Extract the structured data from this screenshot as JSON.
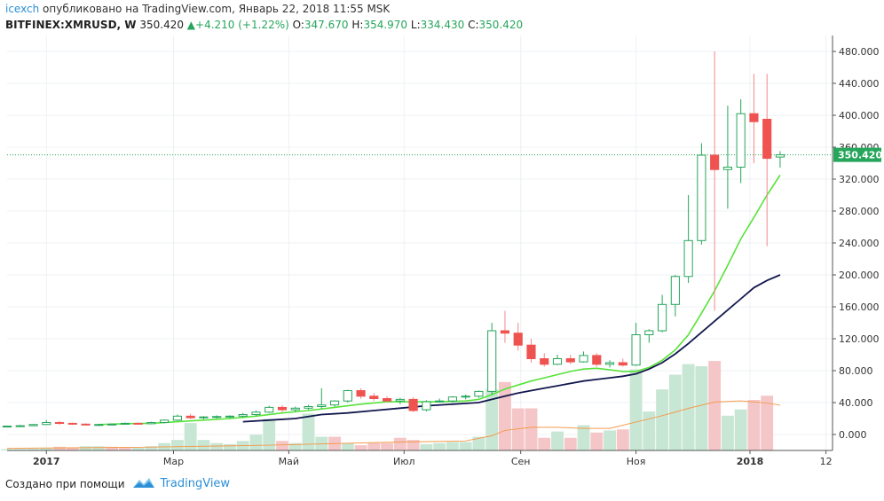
{
  "header": {
    "user": "icexch",
    "published": "опубликовано на TradingView.com, Январь 22, 2018 11:55 MSK",
    "symbol": "BITFINEX:XMRUSD, W",
    "last": "350.420",
    "arrow": "▲",
    "change": "+4.210 (+1.22%)",
    "o_label": "O:",
    "o": "347.670",
    "h_label": "H:",
    "h": "354.970",
    "l_label": "L:",
    "l": "334.430",
    "c_label": "C:",
    "c": "350.420"
  },
  "footer": {
    "created": "Создано при помощи",
    "brand": "TradingView"
  },
  "colors": {
    "up": "#26a65b",
    "down": "#ef5350",
    "volume_up": "#c8e6d4",
    "volume_down": "#f5c6c8",
    "ma_fast": "#57e338",
    "ma_slow": "#12174d",
    "vol_ma": "#f39a4a",
    "price_line": "#26a65b",
    "grid": "#eef1f4"
  },
  "chart_data": {
    "type": "candlestick",
    "y_ticks": [
      "0.000",
      "40.000",
      "80.000",
      "120.000",
      "160.000",
      "200.000",
      "240.000",
      "280.000",
      "320.000",
      "360.000",
      "400.000",
      "440.000",
      "480.000"
    ],
    "y_values": [
      0,
      40,
      80,
      120,
      160,
      200,
      240,
      280,
      320,
      360,
      400,
      440,
      480
    ],
    "ylim": [
      -20,
      500
    ],
    "x_ticks": [
      "2017",
      "Мар",
      "Май",
      "Июл",
      "Сен",
      "Ноя",
      "2018",
      "12"
    ],
    "x_tick_weeks": [
      3,
      12.7,
      21.5,
      30.3,
      39.2,
      48,
      56.7,
      62.5
    ],
    "xlim": [
      0,
      63
    ],
    "last_price_label": "350.420",
    "last_price": 350.42,
    "candles": [
      [
        0,
        10,
        11,
        9,
        10.5
      ],
      [
        1,
        10.5,
        12,
        10,
        11
      ],
      [
        2,
        11,
        13,
        10.5,
        12.5
      ],
      [
        3,
        12.5,
        18,
        12,
        15
      ],
      [
        4,
        15,
        17,
        12,
        14
      ],
      [
        5,
        14,
        15,
        12,
        13
      ],
      [
        6,
        13,
        14,
        11.5,
        12.5
      ],
      [
        7,
        12.5,
        13.5,
        11.5,
        12.5
      ],
      [
        8,
        12.5,
        14,
        12,
        13
      ],
      [
        9,
        13,
        15,
        12.5,
        14
      ],
      [
        10,
        14,
        15,
        12.5,
        13.5
      ],
      [
        11,
        13.5,
        16,
        13,
        15
      ],
      [
        12,
        15,
        19,
        14,
        18
      ],
      [
        13,
        18,
        25,
        17,
        23
      ],
      [
        14,
        23,
        26,
        19,
        21
      ],
      [
        15,
        21,
        23,
        19,
        22
      ],
      [
        16,
        22,
        24,
        20,
        22.5
      ],
      [
        17,
        22.5,
        24,
        20.5,
        23
      ],
      [
        18,
        23,
        27,
        21,
        25
      ],
      [
        19,
        25,
        30,
        23,
        28
      ],
      [
        20,
        28,
        36,
        27,
        34
      ],
      [
        21,
        34,
        37,
        28,
        31
      ],
      [
        22,
        31,
        35,
        28,
        33
      ],
      [
        23,
        33,
        37,
        31,
        35
      ],
      [
        24,
        35,
        58,
        32,
        37
      ],
      [
        25,
        37,
        43,
        35,
        42
      ],
      [
        26,
        42,
        56,
        40,
        55
      ],
      [
        27,
        55,
        58,
        45,
        48
      ],
      [
        28,
        48,
        52,
        42,
        45
      ],
      [
        29,
        45,
        48,
        40,
        42
      ],
      [
        30,
        42,
        46,
        38,
        44
      ],
      [
        31,
        44,
        47,
        28,
        30
      ],
      [
        32,
        31,
        43,
        29,
        41
      ],
      [
        33,
        41,
        45,
        40,
        42
      ],
      [
        34,
        42,
        48,
        40,
        47
      ],
      [
        35,
        47,
        50,
        44,
        48
      ],
      [
        36,
        48,
        55,
        46,
        54
      ],
      [
        37,
        54,
        140,
        50,
        130
      ],
      [
        38,
        130,
        155,
        115,
        127
      ],
      [
        39,
        127,
        140,
        105,
        112
      ],
      [
        40,
        112,
        120,
        90,
        95
      ],
      [
        41,
        95,
        102,
        85,
        88
      ],
      [
        42,
        88,
        100,
        87,
        95
      ],
      [
        43,
        95,
        100,
        88,
        91
      ],
      [
        44,
        91,
        104,
        90,
        99
      ],
      [
        45,
        99,
        102,
        85,
        88
      ],
      [
        46,
        88,
        93,
        84,
        90
      ],
      [
        47,
        90,
        95,
        85,
        87
      ],
      [
        48,
        87,
        140,
        86,
        125
      ],
      [
        49,
        125,
        132,
        115,
        130
      ],
      [
        50,
        130,
        175,
        128,
        163
      ],
      [
        51,
        163,
        200,
        148,
        198
      ],
      [
        52,
        198,
        300,
        190,
        243
      ],
      [
        53,
        243,
        365,
        238,
        350
      ],
      [
        54,
        350,
        480,
        155,
        332
      ],
      [
        55,
        332,
        412,
        283,
        335
      ],
      [
        56,
        335,
        420,
        315,
        402
      ],
      [
        57,
        402,
        452,
        340,
        392
      ],
      [
        58,
        395,
        452,
        236,
        346
      ],
      [
        59,
        347.67,
        354.97,
        334.43,
        350.42
      ]
    ],
    "volume_scale_max": 80,
    "volumes": [
      [
        0,
        1.2,
        1
      ],
      [
        1,
        1.3,
        1
      ],
      [
        2,
        1.5,
        1
      ],
      [
        3,
        2.5,
        1
      ],
      [
        4,
        3.5,
        0
      ],
      [
        5,
        3,
        0
      ],
      [
        6,
        4,
        1
      ],
      [
        7,
        4,
        1
      ],
      [
        8,
        3.5,
        0
      ],
      [
        9,
        2.5,
        0
      ],
      [
        10,
        2.5,
        1
      ],
      [
        11,
        4,
        1
      ],
      [
        12,
        7,
        1
      ],
      [
        13,
        10,
        1
      ],
      [
        14,
        26,
        1
      ],
      [
        15,
        10,
        1
      ],
      [
        16,
        7,
        1
      ],
      [
        17,
        6,
        1
      ],
      [
        18,
        9,
        1
      ],
      [
        19,
        15,
        1
      ],
      [
        20,
        30,
        1
      ],
      [
        21,
        9,
        0
      ],
      [
        22,
        7,
        1
      ],
      [
        23,
        35,
        1
      ],
      [
        24,
        13,
        1
      ],
      [
        25,
        13,
        0
      ],
      [
        26,
        7,
        1
      ],
      [
        27,
        5,
        0
      ],
      [
        28,
        7,
        0
      ],
      [
        29,
        7,
        0
      ],
      [
        30,
        12,
        0
      ],
      [
        31,
        10,
        0
      ],
      [
        32,
        6,
        1
      ],
      [
        33,
        7,
        1
      ],
      [
        34,
        8,
        1
      ],
      [
        35,
        8,
        1
      ],
      [
        36,
        13,
        1
      ],
      [
        37,
        58,
        1
      ],
      [
        38,
        65,
        0
      ],
      [
        39,
        40,
        0
      ],
      [
        40,
        40,
        0
      ],
      [
        41,
        12,
        0
      ],
      [
        42,
        18,
        1
      ],
      [
        43,
        12,
        0
      ],
      [
        44,
        24,
        1
      ],
      [
        45,
        17,
        0
      ],
      [
        46,
        19,
        1
      ],
      [
        47,
        20,
        0
      ],
      [
        48,
        77,
        1
      ],
      [
        49,
        37,
        1
      ],
      [
        50,
        58,
        1
      ],
      [
        51,
        72,
        1
      ],
      [
        52,
        82,
        1
      ],
      [
        53,
        80,
        1
      ],
      [
        54,
        85,
        0
      ],
      [
        55,
        33,
        1
      ],
      [
        56,
        39,
        1
      ],
      [
        57,
        48,
        0
      ],
      [
        58,
        52,
        0
      ],
      [
        59,
        0,
        1
      ]
    ],
    "ma_fast": [
      [
        7,
        12.5
      ],
      [
        9,
        13.5
      ],
      [
        11,
        14
      ],
      [
        13,
        16
      ],
      [
        15,
        18
      ],
      [
        17,
        20
      ],
      [
        19,
        23
      ],
      [
        21,
        27
      ],
      [
        23,
        30
      ],
      [
        25,
        34
      ],
      [
        27,
        38
      ],
      [
        29,
        41
      ],
      [
        31,
        41
      ],
      [
        33,
        41
      ],
      [
        35,
        42
      ],
      [
        36,
        44
      ],
      [
        37,
        50
      ],
      [
        38,
        57
      ],
      [
        39,
        62
      ],
      [
        40,
        67
      ],
      [
        41,
        71
      ],
      [
        42,
        75
      ],
      [
        43,
        79
      ],
      [
        44,
        82
      ],
      [
        45,
        83
      ],
      [
        46,
        81
      ],
      [
        47,
        79
      ],
      [
        48,
        79
      ],
      [
        49,
        84
      ],
      [
        50,
        93
      ],
      [
        51,
        106
      ],
      [
        52,
        125
      ],
      [
        53,
        152
      ],
      [
        54,
        180
      ],
      [
        55,
        212
      ],
      [
        56,
        245
      ],
      [
        57,
        272
      ],
      [
        58,
        300
      ],
      [
        59,
        325
      ]
    ],
    "ma_slow": [
      [
        18,
        16
      ],
      [
        20,
        18
      ],
      [
        22,
        20
      ],
      [
        24,
        25
      ],
      [
        26,
        27
      ],
      [
        28,
        30
      ],
      [
        30,
        33
      ],
      [
        32,
        36
      ],
      [
        34,
        38
      ],
      [
        36,
        40
      ],
      [
        37,
        44
      ],
      [
        38,
        48
      ],
      [
        39,
        52
      ],
      [
        40,
        55
      ],
      [
        41,
        58
      ],
      [
        42,
        61
      ],
      [
        43,
        64
      ],
      [
        44,
        67
      ],
      [
        45,
        69
      ],
      [
        46,
        71
      ],
      [
        47,
        73
      ],
      [
        48,
        76
      ],
      [
        49,
        82
      ],
      [
        50,
        90
      ],
      [
        51,
        101
      ],
      [
        52,
        114
      ],
      [
        53,
        128
      ],
      [
        54,
        142
      ],
      [
        55,
        156
      ],
      [
        56,
        170
      ],
      [
        57,
        184
      ],
      [
        58,
        193
      ],
      [
        59,
        200
      ]
    ],
    "vol_ma": [
      [
        0,
        2
      ],
      [
        10,
        3
      ],
      [
        20,
        5
      ],
      [
        30,
        8
      ],
      [
        35,
        9
      ],
      [
        37,
        14
      ],
      [
        38,
        19
      ],
      [
        40,
        22
      ],
      [
        42,
        22
      ],
      [
        44,
        21
      ],
      [
        46,
        21
      ],
      [
        48,
        27
      ],
      [
        50,
        33
      ],
      [
        52,
        40
      ],
      [
        54,
        46
      ],
      [
        56,
        47
      ],
      [
        58,
        45
      ],
      [
        59,
        43
      ]
    ]
  }
}
